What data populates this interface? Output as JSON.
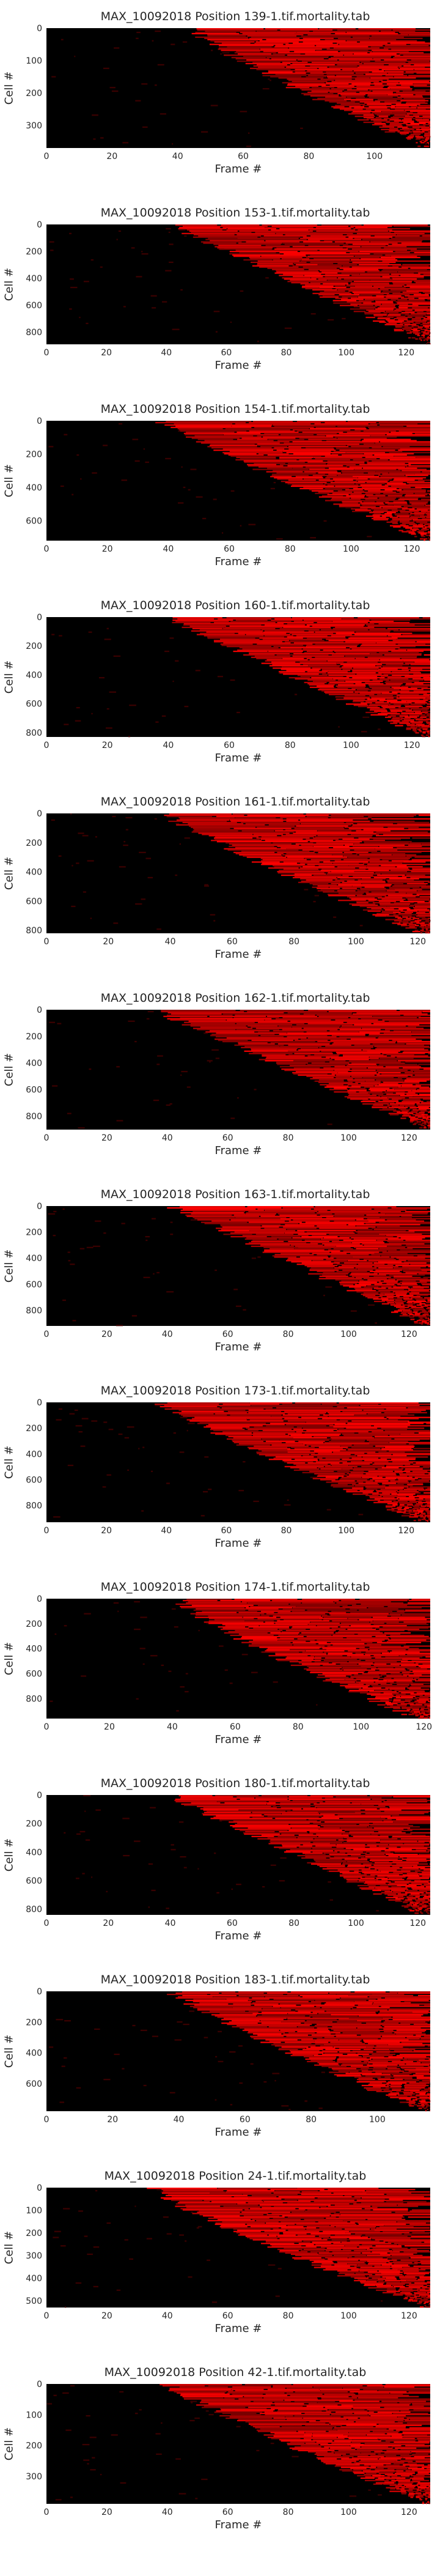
{
  "chart_data": [
    {
      "type": "heatmap",
      "title": "MAX_10092018 Position 139-1.tif.mortality.tab",
      "xlabel": "Frame #",
      "ylabel": "Cell #",
      "xlim": [
        0,
        117
      ],
      "ylim": [
        370,
        0
      ],
      "xticks": [
        0,
        20,
        40,
        60,
        80,
        100
      ],
      "yticks": [
        0,
        100,
        200,
        300
      ],
      "death_frame": {
        "start": 45,
        "end": 117,
        "curve": 1.2
      },
      "colormap": [
        "#000000",
        "#ff0000"
      ]
    },
    {
      "type": "heatmap",
      "title": "MAX_10092018 Position 153-1.tif.mortality.tab",
      "xlabel": "Frame #",
      "ylabel": "Cell #",
      "xlim": [
        0,
        128
      ],
      "ylim": [
        890,
        0
      ],
      "xticks": [
        0,
        20,
        40,
        60,
        80,
        100,
        120
      ],
      "yticks": [
        0,
        200,
        400,
        600,
        800
      ],
      "death_frame": {
        "start": 42,
        "end": 128,
        "curve": 1.0
      },
      "colormap": [
        "#000000",
        "#ff0000"
      ]
    },
    {
      "type": "heatmap",
      "title": "MAX_10092018 Position 154-1.tif.mortality.tab",
      "xlabel": "Frame #",
      "ylabel": "Cell #",
      "xlim": [
        0,
        126
      ],
      "ylim": [
        720,
        0
      ],
      "xticks": [
        0,
        20,
        40,
        60,
        80,
        100,
        120
      ],
      "yticks": [
        0,
        200,
        400,
        600
      ],
      "death_frame": {
        "start": 38,
        "end": 126,
        "curve": 1.1
      },
      "colormap": [
        "#000000",
        "#ff0000"
      ]
    },
    {
      "type": "heatmap",
      "title": "MAX_10092018 Position 160-1.tif.mortality.tab",
      "xlabel": "Frame #",
      "ylabel": "Cell #",
      "xlim": [
        0,
        126
      ],
      "ylim": [
        830,
        0
      ],
      "xticks": [
        0,
        20,
        40,
        60,
        80,
        100,
        120
      ],
      "yticks": [
        0,
        200,
        400,
        600,
        800
      ],
      "death_frame": {
        "start": 40,
        "end": 124,
        "curve": 1.0
      },
      "colormap": [
        "#000000",
        "#ff0000"
      ]
    },
    {
      "type": "heatmap",
      "title": "MAX_10092018 Position 161-1.tif.mortality.tab",
      "xlabel": "Frame #",
      "ylabel": "Cell #",
      "xlim": [
        0,
        124
      ],
      "ylim": [
        820,
        0
      ],
      "xticks": [
        0,
        20,
        40,
        60,
        80,
        100,
        120
      ],
      "yticks": [
        0,
        200,
        400,
        600,
        800
      ],
      "death_frame": {
        "start": 38,
        "end": 122,
        "curve": 1.1
      },
      "colormap": [
        "#000000",
        "#ff0000"
      ]
    },
    {
      "type": "heatmap",
      "title": "MAX_10092018 Position 162-1.tif.mortality.tab",
      "xlabel": "Frame #",
      "ylabel": "Cell #",
      "xlim": [
        0,
        127
      ],
      "ylim": [
        900,
        0
      ],
      "xticks": [
        0,
        20,
        40,
        60,
        80,
        100,
        120
      ],
      "yticks": [
        0,
        200,
        400,
        600,
        800
      ],
      "death_frame": {
        "start": 36,
        "end": 126,
        "curve": 1.0
      },
      "colormap": [
        "#000000",
        "#ff0000"
      ]
    },
    {
      "type": "heatmap",
      "title": "MAX_10092018 Position 163-1.tif.mortality.tab",
      "xlabel": "Frame #",
      "ylabel": "Cell #",
      "xlim": [
        0,
        127
      ],
      "ylim": [
        920,
        0
      ],
      "xticks": [
        0,
        20,
        40,
        60,
        80,
        100,
        120
      ],
      "yticks": [
        0,
        200,
        400,
        600,
        800
      ],
      "death_frame": {
        "start": 42,
        "end": 126,
        "curve": 1.0
      },
      "colormap": [
        "#000000",
        "#ff0000"
      ]
    },
    {
      "type": "heatmap",
      "title": "MAX_10092018 Position 173-1.tif.mortality.tab",
      "xlabel": "Frame #",
      "ylabel": "Cell #",
      "xlim": [
        0,
        128
      ],
      "ylim": [
        930,
        0
      ],
      "xticks": [
        0,
        20,
        40,
        60,
        80,
        100,
        120
      ],
      "yticks": [
        0,
        200,
        400,
        600,
        800
      ],
      "death_frame": {
        "start": 38,
        "end": 126,
        "curve": 1.1
      },
      "colormap": [
        "#000000",
        "#ff0000"
      ]
    },
    {
      "type": "heatmap",
      "title": "MAX_10092018 Position 174-1.tif.mortality.tab",
      "xlabel": "Frame #",
      "ylabel": "Cell #",
      "xlim": [
        0,
        122
      ],
      "ylim": [
        960,
        0
      ],
      "xticks": [
        0,
        20,
        40,
        60,
        80,
        100,
        120
      ],
      "yticks": [
        0,
        200,
        400,
        600,
        800
      ],
      "death_frame": {
        "start": 42,
        "end": 118,
        "curve": 1.2
      },
      "colormap": [
        "#000000",
        "#ff0000"
      ]
    },
    {
      "type": "heatmap",
      "title": "MAX_10092018 Position 180-1.tif.mortality.tab",
      "xlabel": "Frame #",
      "ylabel": "Cell #",
      "xlim": [
        0,
        124
      ],
      "ylim": [
        840,
        0
      ],
      "xticks": [
        0,
        20,
        40,
        60,
        80,
        100,
        120
      ],
      "yticks": [
        0,
        200,
        400,
        600,
        800
      ],
      "death_frame": {
        "start": 40,
        "end": 122,
        "curve": 1.0
      },
      "colormap": [
        "#000000",
        "#ff0000"
      ]
    },
    {
      "type": "heatmap",
      "title": "MAX_10092018 Position 183-1.tif.mortality.tab",
      "xlabel": "Frame #",
      "ylabel": "Cell #",
      "xlim": [
        0,
        116
      ],
      "ylim": [
        780,
        0
      ],
      "xticks": [
        0,
        20,
        40,
        60,
        80,
        100
      ],
      "yticks": [
        0,
        200,
        400,
        600
      ],
      "death_frame": {
        "start": 38,
        "end": 114,
        "curve": 1.1
      },
      "colormap": [
        "#000000",
        "#ff0000"
      ]
    },
    {
      "type": "heatmap",
      "title": "MAX_10092018 Position 24-1.tif.mortality.tab",
      "xlabel": "Frame #",
      "ylabel": "Cell #",
      "xlim": [
        0,
        127
      ],
      "ylim": [
        530,
        0
      ],
      "xticks": [
        0,
        20,
        40,
        60,
        80,
        100,
        120
      ],
      "yticks": [
        0,
        100,
        200,
        300,
        400,
        500
      ],
      "death_frame": {
        "start": 36,
        "end": 126,
        "curve": 1.2
      },
      "colormap": [
        "#000000",
        "#ff0000"
      ]
    },
    {
      "type": "heatmap",
      "title": "MAX_10092018 Position 42-1.tif.mortality.tab",
      "xlabel": "Frame #",
      "ylabel": "Cell #",
      "xlim": [
        0,
        127
      ],
      "ylim": [
        390,
        0
      ],
      "xticks": [
        0,
        20,
        40,
        60,
        80,
        100,
        120
      ],
      "yticks": [
        0,
        100,
        200,
        300
      ],
      "death_frame": {
        "start": 40,
        "end": 126,
        "curve": 1.1
      },
      "colormap": [
        "#000000",
        "#ff0000"
      ]
    }
  ]
}
